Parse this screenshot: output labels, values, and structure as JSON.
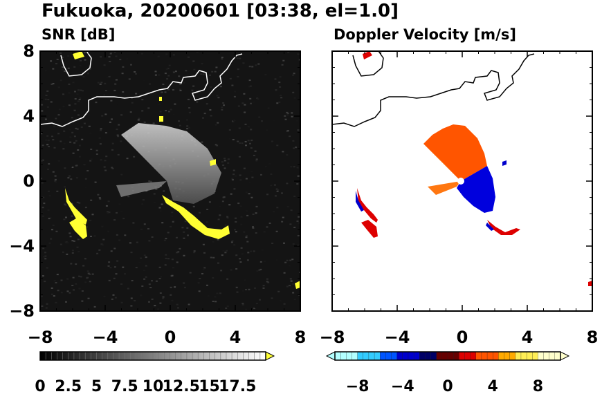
{
  "figure": {
    "title": "Fukuoka, 20200601 [03:38, el=1.0]"
  },
  "chart_data": [
    {
      "type": "heatmap",
      "title": "SNR [dB]",
      "xlim": [
        -8,
        8
      ],
      "ylim": [
        -8,
        8
      ],
      "xticks": [
        -8,
        -4,
        0,
        4,
        8
      ],
      "yticks": [
        -8,
        -4,
        0,
        4,
        8
      ],
      "xtick_labels": [
        "−8",
        "−4",
        "0",
        "4",
        "8"
      ],
      "ytick_labels": [
        "8",
        "4",
        "0",
        "−4",
        "−8"
      ],
      "grid": false,
      "colorbar": {
        "range": [
          0,
          20
        ],
        "ticks": [
          0,
          2.5,
          5,
          7.5,
          10,
          12.5,
          15,
          17.5
        ],
        "labels": [
          "0",
          "2.5",
          "5",
          "7.5",
          "10",
          "12.5",
          "15",
          "17.5"
        ],
        "extend": "max",
        "colors": [
          "#000000",
          "#ffffff"
        ],
        "extend_color": "#ffff33"
      },
      "echo_color": "#ffff33"
    },
    {
      "type": "heatmap",
      "title": "Doppler Velocity [m/s]",
      "xlim": [
        -8,
        8
      ],
      "ylim": [
        -8,
        8
      ],
      "xticks": [
        -8,
        -4,
        0,
        4,
        8
      ],
      "yticks": [
        -8,
        -4,
        0,
        4,
        8
      ],
      "xtick_labels": [
        "−8",
        "−4",
        "0",
        "4",
        "8"
      ],
      "ytick_labels": [
        "8",
        "4",
        "0",
        "−4",
        "−8"
      ],
      "grid": false,
      "colorbar": {
        "range": [
          -10,
          10
        ],
        "ticks": [
          -8,
          -4,
          0,
          4,
          8
        ],
        "labels": [
          "−8",
          "−4",
          "0",
          "4",
          "8"
        ],
        "extend": "both",
        "colors": [
          "#b3ffff",
          "#33ccff",
          "#0055ff",
          "#0000cc",
          "#000066",
          "#660000",
          "#dd0000",
          "#ff5500",
          "#ffaa00",
          "#ffee55",
          "#ffffcc"
        ]
      },
      "approach_color": "#0000ee",
      "recede_color": "#ff5500"
    }
  ]
}
